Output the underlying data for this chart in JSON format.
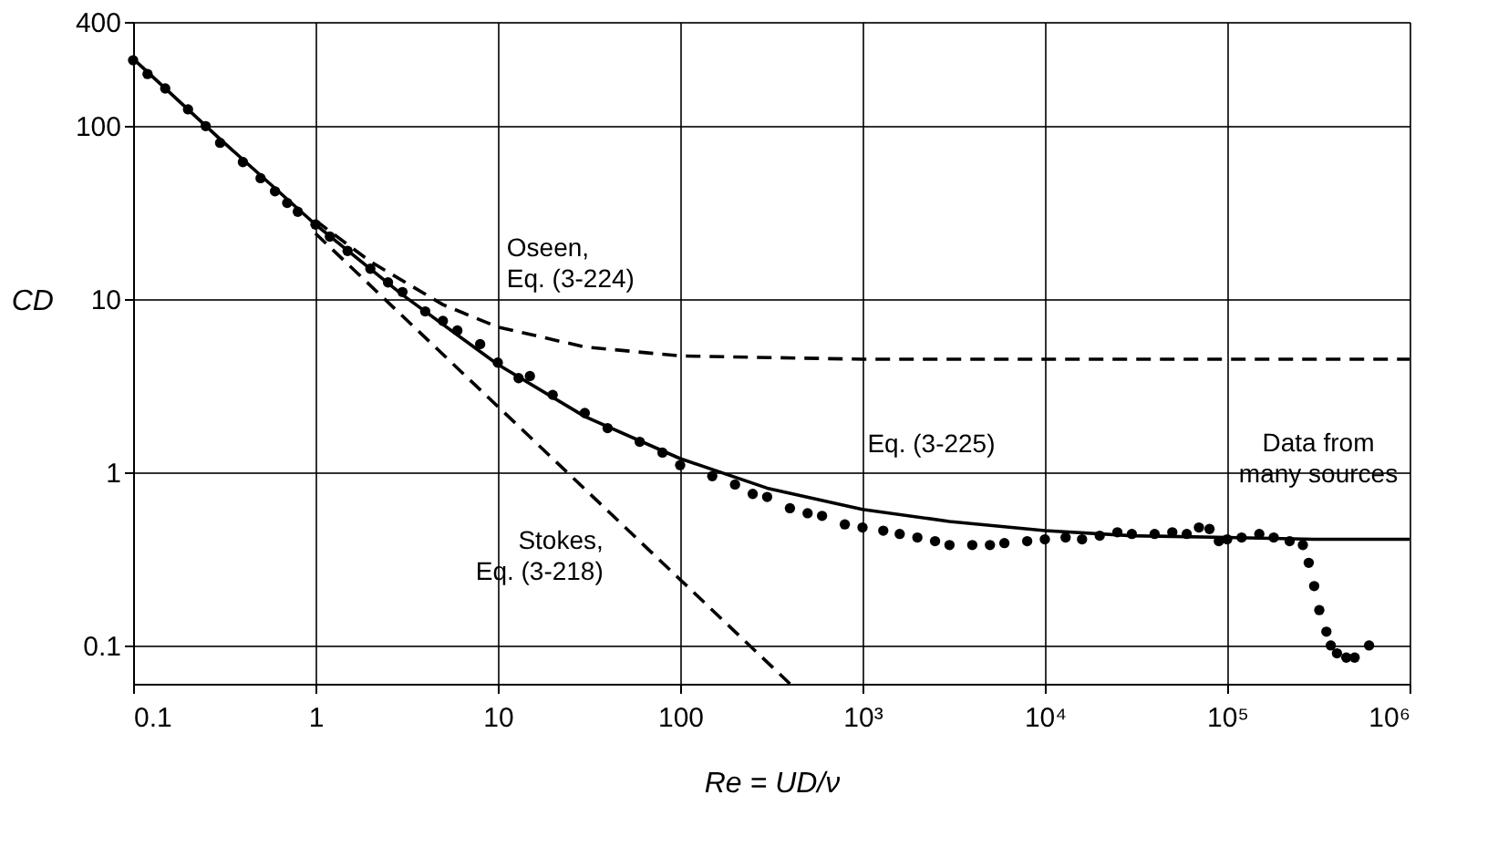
{
  "chart_data": {
    "type": "scatter",
    "xlabel": "Re = UD/ν",
    "ylabel": "CD",
    "log": "xy",
    "grid": true,
    "legend": false,
    "xlim": [
      0.1,
      1000000
    ],
    "ylim": [
      0.06,
      400
    ],
    "xticks": [
      0.1,
      1,
      10,
      100,
      {
        "value": 1000,
        "label": "10³"
      },
      {
        "value": 10000,
        "label": "10⁴"
      },
      {
        "value": 100000,
        "label": "10⁵"
      },
      {
        "value": 1000000,
        "label": "10⁶"
      }
    ],
    "yticks": [
      0.1,
      1,
      10,
      100,
      400
    ],
    "series": [
      {
        "name": "Data from\nmany sources",
        "color": "#000000",
        "marker": "circle",
        "x": [
          0.1,
          0.12,
          0.15,
          0.2,
          0.25,
          0.3,
          0.4,
          0.5,
          0.6,
          0.7,
          0.8,
          1,
          1.2,
          1.5,
          2,
          2.5,
          3,
          4,
          5,
          6,
          8,
          10,
          13,
          15,
          20,
          30,
          40,
          60,
          80,
          100,
          150,
          200,
          250,
          300,
          400,
          500,
          600,
          800,
          1000,
          1300,
          1600,
          2000,
          2500,
          3000,
          4000,
          5000,
          6000,
          8000,
          10000,
          13000,
          16000,
          20000,
          25000,
          30000,
          40000,
          50000,
          60000,
          70000,
          80000,
          90000,
          100000,
          120000,
          150000,
          180000,
          220000,
          260000,
          280000,
          300000,
          320000,
          350000,
          370000,
          400000,
          450000,
          500000,
          600000
        ],
        "values": [
          240,
          200,
          165,
          125,
          100,
          80,
          62,
          50,
          42,
          36,
          32,
          27,
          23,
          19,
          15,
          12.5,
          11,
          8.5,
          7.5,
          6.6,
          5.5,
          4.3,
          3.5,
          3.6,
          2.8,
          2.2,
          1.8,
          1.5,
          1.3,
          1.1,
          0.95,
          0.85,
          0.75,
          0.72,
          0.62,
          0.58,
          0.56,
          0.5,
          0.48,
          0.46,
          0.44,
          0.42,
          0.4,
          0.38,
          0.38,
          0.38,
          0.39,
          0.4,
          0.41,
          0.42,
          0.41,
          0.43,
          0.45,
          0.44,
          0.44,
          0.45,
          0.44,
          0.48,
          0.47,
          0.4,
          0.41,
          0.42,
          0.44,
          0.42,
          0.4,
          0.38,
          0.3,
          0.22,
          0.16,
          0.12,
          0.1,
          0.09,
          0.085,
          0.085,
          0.1
        ]
      },
      {
        "name": "Eq. (3-225)",
        "type": "line",
        "color": "#000000",
        "line_style": "solid",
        "x": [
          0.1,
          0.3,
          1,
          3,
          10,
          30,
          100,
          300,
          1000,
          3000,
          10000,
          30000,
          100000,
          300000,
          1000000
        ],
        "values": [
          245,
          84,
          27,
          10.6,
          4.2,
          2.1,
          1.2,
          0.81,
          0.61,
          0.52,
          0.46,
          0.43,
          0.42,
          0.41,
          0.41
        ]
      },
      {
        "name": "Oseen,\nEq. (3-224)",
        "type": "line",
        "color": "#000000",
        "line_style": "dashed",
        "x": [
          1,
          2,
          5,
          10,
          30,
          100,
          1000,
          10000,
          1000000
        ],
        "values": [
          28.5,
          16.5,
          9.3,
          6.9,
          5.3,
          4.7,
          4.5,
          4.5,
          4.5
        ]
      },
      {
        "name": "Stokes,\nEq. (3-218)",
        "type": "line",
        "color": "#000000",
        "line_style": "dashed",
        "x": [
          1,
          10,
          50,
          100,
          400
        ],
        "values": [
          24,
          2.4,
          0.48,
          0.24,
          0.06
        ]
      }
    ]
  }
}
